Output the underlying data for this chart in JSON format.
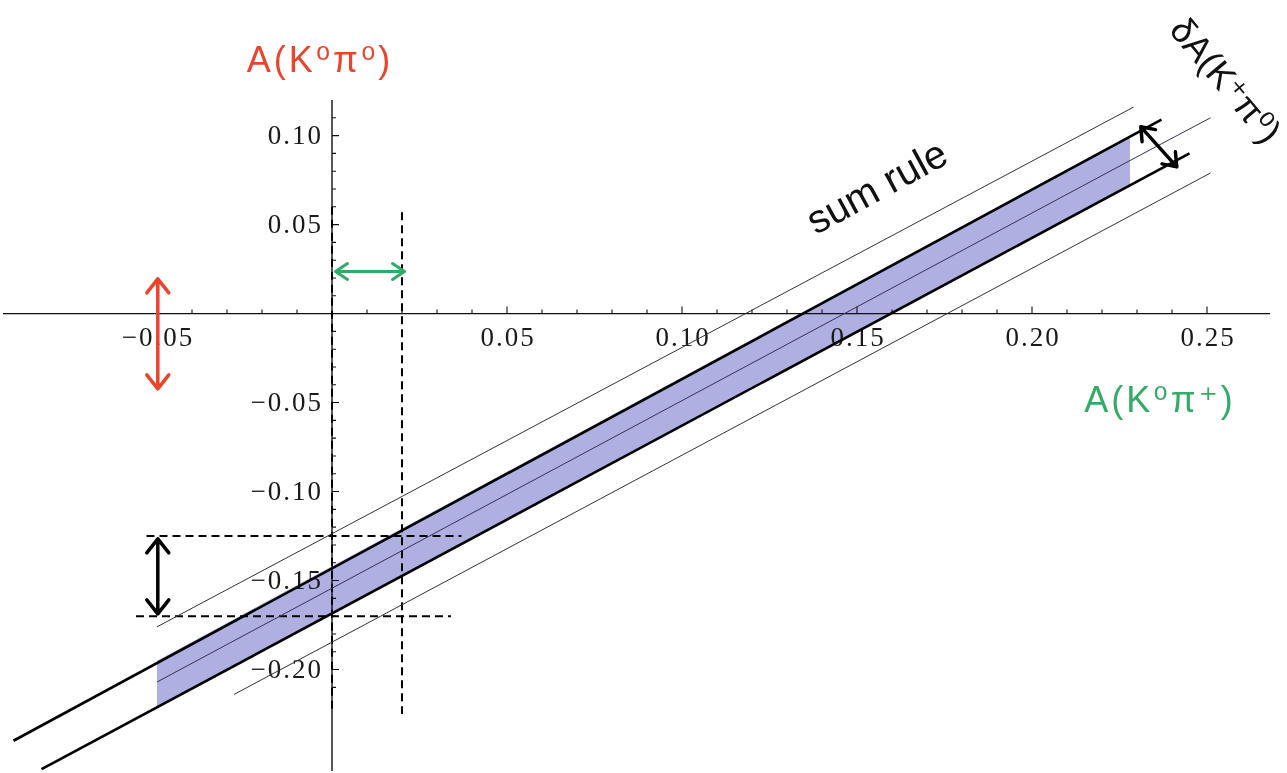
{
  "chart_data": {
    "type": "line",
    "ylabel": "A(K⁰π⁰)",
    "xlabel": "A(K⁰π⁺)",
    "annotations": [
      "sum rule",
      "δA(K⁺π⁰)"
    ],
    "xlim": [
      -0.094,
      0.268
    ],
    "ylim": [
      -0.257,
      0.12
    ],
    "xticks": [
      {
        "value": -0.05,
        "label": "−0.05"
      },
      {
        "value": -0.04,
        "label": null
      },
      {
        "value": -0.03,
        "label": null
      },
      {
        "value": -0.02,
        "label": null
      },
      {
        "value": -0.01,
        "label": null
      },
      {
        "value": 0.01,
        "label": null
      },
      {
        "value": 0.02,
        "label": null
      },
      {
        "value": 0.03,
        "label": null
      },
      {
        "value": 0.04,
        "label": null
      },
      {
        "value": 0.05,
        "label": "0.05"
      },
      {
        "value": 0.06,
        "label": null
      },
      {
        "value": 0.07,
        "label": null
      },
      {
        "value": 0.08,
        "label": null
      },
      {
        "value": 0.09,
        "label": null
      },
      {
        "value": 0.1,
        "label": "0.10"
      },
      {
        "value": 0.11,
        "label": null
      },
      {
        "value": 0.12,
        "label": null
      },
      {
        "value": 0.13,
        "label": null
      },
      {
        "value": 0.14,
        "label": null
      },
      {
        "value": 0.15,
        "label": "0.15"
      },
      {
        "value": 0.16,
        "label": null
      },
      {
        "value": 0.17,
        "label": null
      },
      {
        "value": 0.18,
        "label": null
      },
      {
        "value": 0.19,
        "label": null
      },
      {
        "value": 0.2,
        "label": "0.20"
      },
      {
        "value": 0.21,
        "label": null
      },
      {
        "value": 0.22,
        "label": null
      },
      {
        "value": 0.23,
        "label": null
      },
      {
        "value": 0.24,
        "label": null
      },
      {
        "value": 0.25,
        "label": "0.25"
      }
    ],
    "yticks": [
      {
        "value": -0.21,
        "label": null
      },
      {
        "value": -0.2,
        "label": "−0.20"
      },
      {
        "value": -0.19,
        "label": null
      },
      {
        "value": -0.18,
        "label": null
      },
      {
        "value": -0.17,
        "label": null
      },
      {
        "value": -0.16,
        "label": null
      },
      {
        "value": -0.15,
        "label": "−0.15"
      },
      {
        "value": -0.14,
        "label": null
      },
      {
        "value": -0.13,
        "label": null
      },
      {
        "value": -0.12,
        "label": null
      },
      {
        "value": -0.11,
        "label": null
      },
      {
        "value": -0.1,
        "label": "−0.10"
      },
      {
        "value": -0.09,
        "label": null
      },
      {
        "value": -0.08,
        "label": null
      },
      {
        "value": -0.07,
        "label": null
      },
      {
        "value": -0.06,
        "label": null
      },
      {
        "value": -0.05,
        "label": "−0.05"
      },
      {
        "value": -0.04,
        "label": null
      },
      {
        "value": -0.03,
        "label": null
      },
      {
        "value": -0.02,
        "label": null
      },
      {
        "value": -0.01,
        "label": null
      },
      {
        "value": 0.01,
        "label": null
      },
      {
        "value": 0.02,
        "label": null
      },
      {
        "value": 0.03,
        "label": null
      },
      {
        "value": 0.04,
        "label": null
      },
      {
        "value": 0.05,
        "label": "0.05"
      },
      {
        "value": 0.06,
        "label": null
      },
      {
        "value": 0.07,
        "label": null
      },
      {
        "value": 0.08,
        "label": null
      },
      {
        "value": 0.09,
        "label": null
      },
      {
        "value": 0.1,
        "label": "0.10"
      },
      {
        "value": 0.11,
        "label": null
      }
    ],
    "grid": false,
    "legend": false,
    "marker": "none",
    "line_style": "solid",
    "series": [
      {
        "color": "#333333",
        "x": [
          -0.05,
          0.229
        ],
        "values": [
          -0.176,
          0.116
        ]
      },
      {
        "color": "#000000",
        "x": [
          -0.091,
          0.237
        ],
        "values": [
          -0.24,
          0.109
        ]
      },
      {
        "color": "#333355",
        "x": [
          -0.05,
          0.228,
          0.251
        ],
        "values": [
          -0.207,
          0.086,
          0.11
        ],
        "lower": [
          -0.221,
          0.072,
          null
        ],
        "upper": [
          -0.195,
          0.1,
          null
        ]
      },
      {
        "color": "#000000",
        "x": [
          -0.083,
          0.245
        ],
        "values": [
          -0.256,
          0.09
        ]
      },
      {
        "color": "#333333",
        "x": [
          -0.028,
          0.251
        ],
        "values": [
          -0.214,
          0.079
        ]
      },
      {
        "color": "#000000",
        "line_style": "dashed",
        "x": [
          0,
          0
        ],
        "values": [
          0.06,
          -0.224
        ]
      },
      {
        "color": "#000000",
        "line_style": "dashed",
        "x": [
          0.02,
          0.02
        ],
        "values": [
          0.057,
          -0.225
        ]
      },
      {
        "color": "#000000",
        "line_style": "dashed",
        "x": [
          -0.053,
          0.037
        ],
        "values": [
          -0.125,
          -0.125
        ]
      },
      {
        "color": "#000000",
        "line_style": "dashed",
        "x": [
          -0.056,
          0.034
        ],
        "values": [
          -0.17,
          -0.17
        ]
      }
    ]
  }
}
